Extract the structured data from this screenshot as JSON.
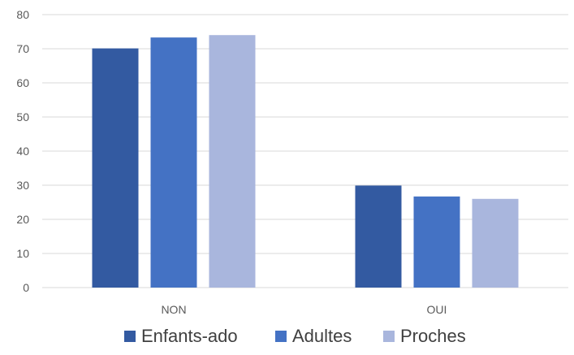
{
  "chart_data": {
    "type": "bar",
    "title": "",
    "xlabel": "",
    "ylabel": "",
    "categories": [
      "NON",
      "OUI"
    ],
    "series": [
      {
        "name": "Enfants-ado",
        "values": [
          70.1,
          29.9
        ],
        "color": "#335AA1"
      },
      {
        "name": "Adultes",
        "values": [
          73.3,
          26.7
        ],
        "color": "#4472C4"
      },
      {
        "name": "Proches",
        "values": [
          74.0,
          26.0
        ],
        "color": "#A9B6DD"
      }
    ],
    "ylim": [
      0,
      80
    ],
    "yticks": [
      "0",
      "10",
      "20",
      "30",
      "40",
      "50",
      "60",
      "70",
      "80"
    ],
    "grid": true,
    "gridline_color": "#D9D9D9",
    "legend_position": "bottom"
  }
}
